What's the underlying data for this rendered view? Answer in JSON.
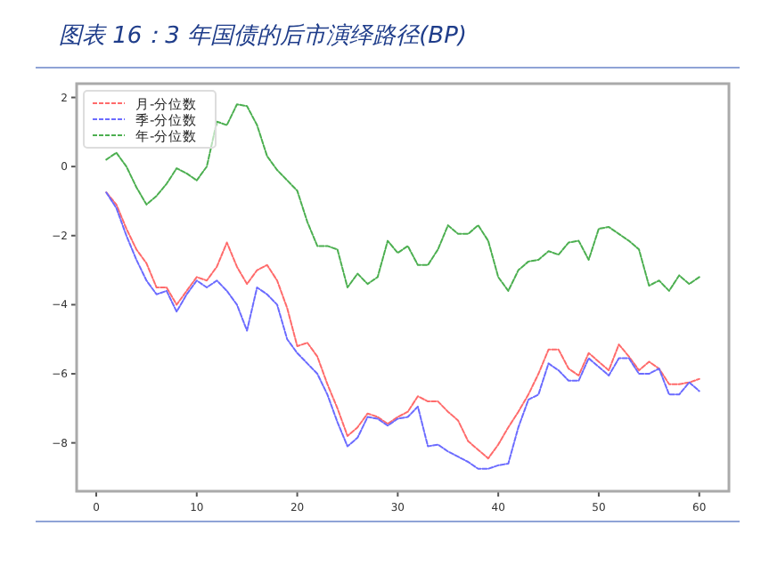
{
  "chart_data": {
    "type": "line",
    "title": "图表 16：3 年国债的后市演绎路径(BP)",
    "x": [
      1,
      2,
      3,
      4,
      5,
      6,
      7,
      8,
      9,
      10,
      11,
      12,
      13,
      14,
      15,
      16,
      17,
      18,
      19,
      20,
      21,
      22,
      23,
      24,
      25,
      26,
      27,
      28,
      29,
      30,
      31,
      32,
      33,
      34,
      35,
      36,
      37,
      38,
      39,
      40,
      41,
      42,
      43,
      44,
      45,
      46,
      47,
      48,
      49,
      50,
      51,
      52,
      53,
      54,
      55,
      56,
      57,
      58,
      59,
      60
    ],
    "series": [
      {
        "name": "月-分位数",
        "color": "#ff6b6b",
        "values": [
          -0.75,
          -1.1,
          -1.8,
          -2.4,
          -2.8,
          -3.5,
          -3.5,
          -4.0,
          -3.6,
          -3.2,
          -3.3,
          -2.9,
          -2.2,
          -2.9,
          -3.4,
          -3.0,
          -2.85,
          -3.3,
          -4.1,
          -5.2,
          -5.1,
          -5.5,
          -6.3,
          -7.0,
          -7.8,
          -7.55,
          -7.15,
          -7.25,
          -7.45,
          -7.25,
          -7.1,
          -6.65,
          -6.8,
          -6.8,
          -7.1,
          -7.35,
          -7.95,
          -8.2,
          -8.45,
          -8.05,
          -7.55,
          -7.1,
          -6.6,
          -6.0,
          -5.3,
          -5.3,
          -5.85,
          -6.05,
          -5.4,
          -5.65,
          -5.9,
          -5.15,
          -5.5,
          -5.9,
          -5.65,
          -5.85,
          -6.3,
          -6.3,
          -6.25,
          -6.15
        ]
      },
      {
        "name": "季-分位数",
        "color": "#6b6bff",
        "values": [
          -0.75,
          -1.2,
          -2.0,
          -2.7,
          -3.3,
          -3.7,
          -3.6,
          -4.2,
          -3.7,
          -3.3,
          -3.5,
          -3.3,
          -3.6,
          -4.0,
          -4.75,
          -3.5,
          -3.7,
          -4.0,
          -5.0,
          -5.4,
          -5.7,
          -6.0,
          -6.6,
          -7.4,
          -8.1,
          -7.85,
          -7.25,
          -7.3,
          -7.5,
          -7.3,
          -7.25,
          -6.95,
          -8.1,
          -8.05,
          -8.25,
          -8.4,
          -8.55,
          -8.75,
          -8.75,
          -8.65,
          -8.6,
          -7.55,
          -6.75,
          -6.6,
          -5.7,
          -5.9,
          -6.2,
          -6.2,
          -5.55,
          -5.8,
          -6.05,
          -5.55,
          -5.55,
          -6.0,
          -6.0,
          -5.85,
          -6.6,
          -6.6,
          -6.25,
          -6.5
        ]
      },
      {
        "name": "年-分位数",
        "color": "#4caf50",
        "values": [
          0.2,
          0.4,
          0.0,
          -0.6,
          -1.1,
          -0.85,
          -0.5,
          -0.05,
          -0.2,
          -0.4,
          0.0,
          1.3,
          1.2,
          1.8,
          1.75,
          1.2,
          0.3,
          -0.1,
          -0.4,
          -0.7,
          -1.6,
          -2.3,
          -2.3,
          -2.4,
          -3.5,
          -3.1,
          -3.4,
          -3.2,
          -2.15,
          -2.5,
          -2.3,
          -2.85,
          -2.85,
          -2.4,
          -1.7,
          -1.95,
          -1.95,
          -1.7,
          -2.15,
          -3.2,
          -3.6,
          -3.0,
          -2.75,
          -2.7,
          -2.45,
          -2.55,
          -2.2,
          -2.15,
          -2.7,
          -1.8,
          -1.75,
          -1.95,
          -2.15,
          -2.4,
          -3.45,
          -3.3,
          -3.6,
          -3.15,
          -3.4,
          -3.2
        ]
      }
    ],
    "xlim": [
      -1.95,
      62.95
    ],
    "ylim": [
      -9.4,
      2.4
    ],
    "xticks": [
      0,
      10,
      20,
      30,
      40,
      50,
      60
    ],
    "yticks": [
      2,
      0,
      -2,
      -4,
      -6,
      -8
    ],
    "line_style": "dashed",
    "legend": "top left",
    "grid": false
  }
}
